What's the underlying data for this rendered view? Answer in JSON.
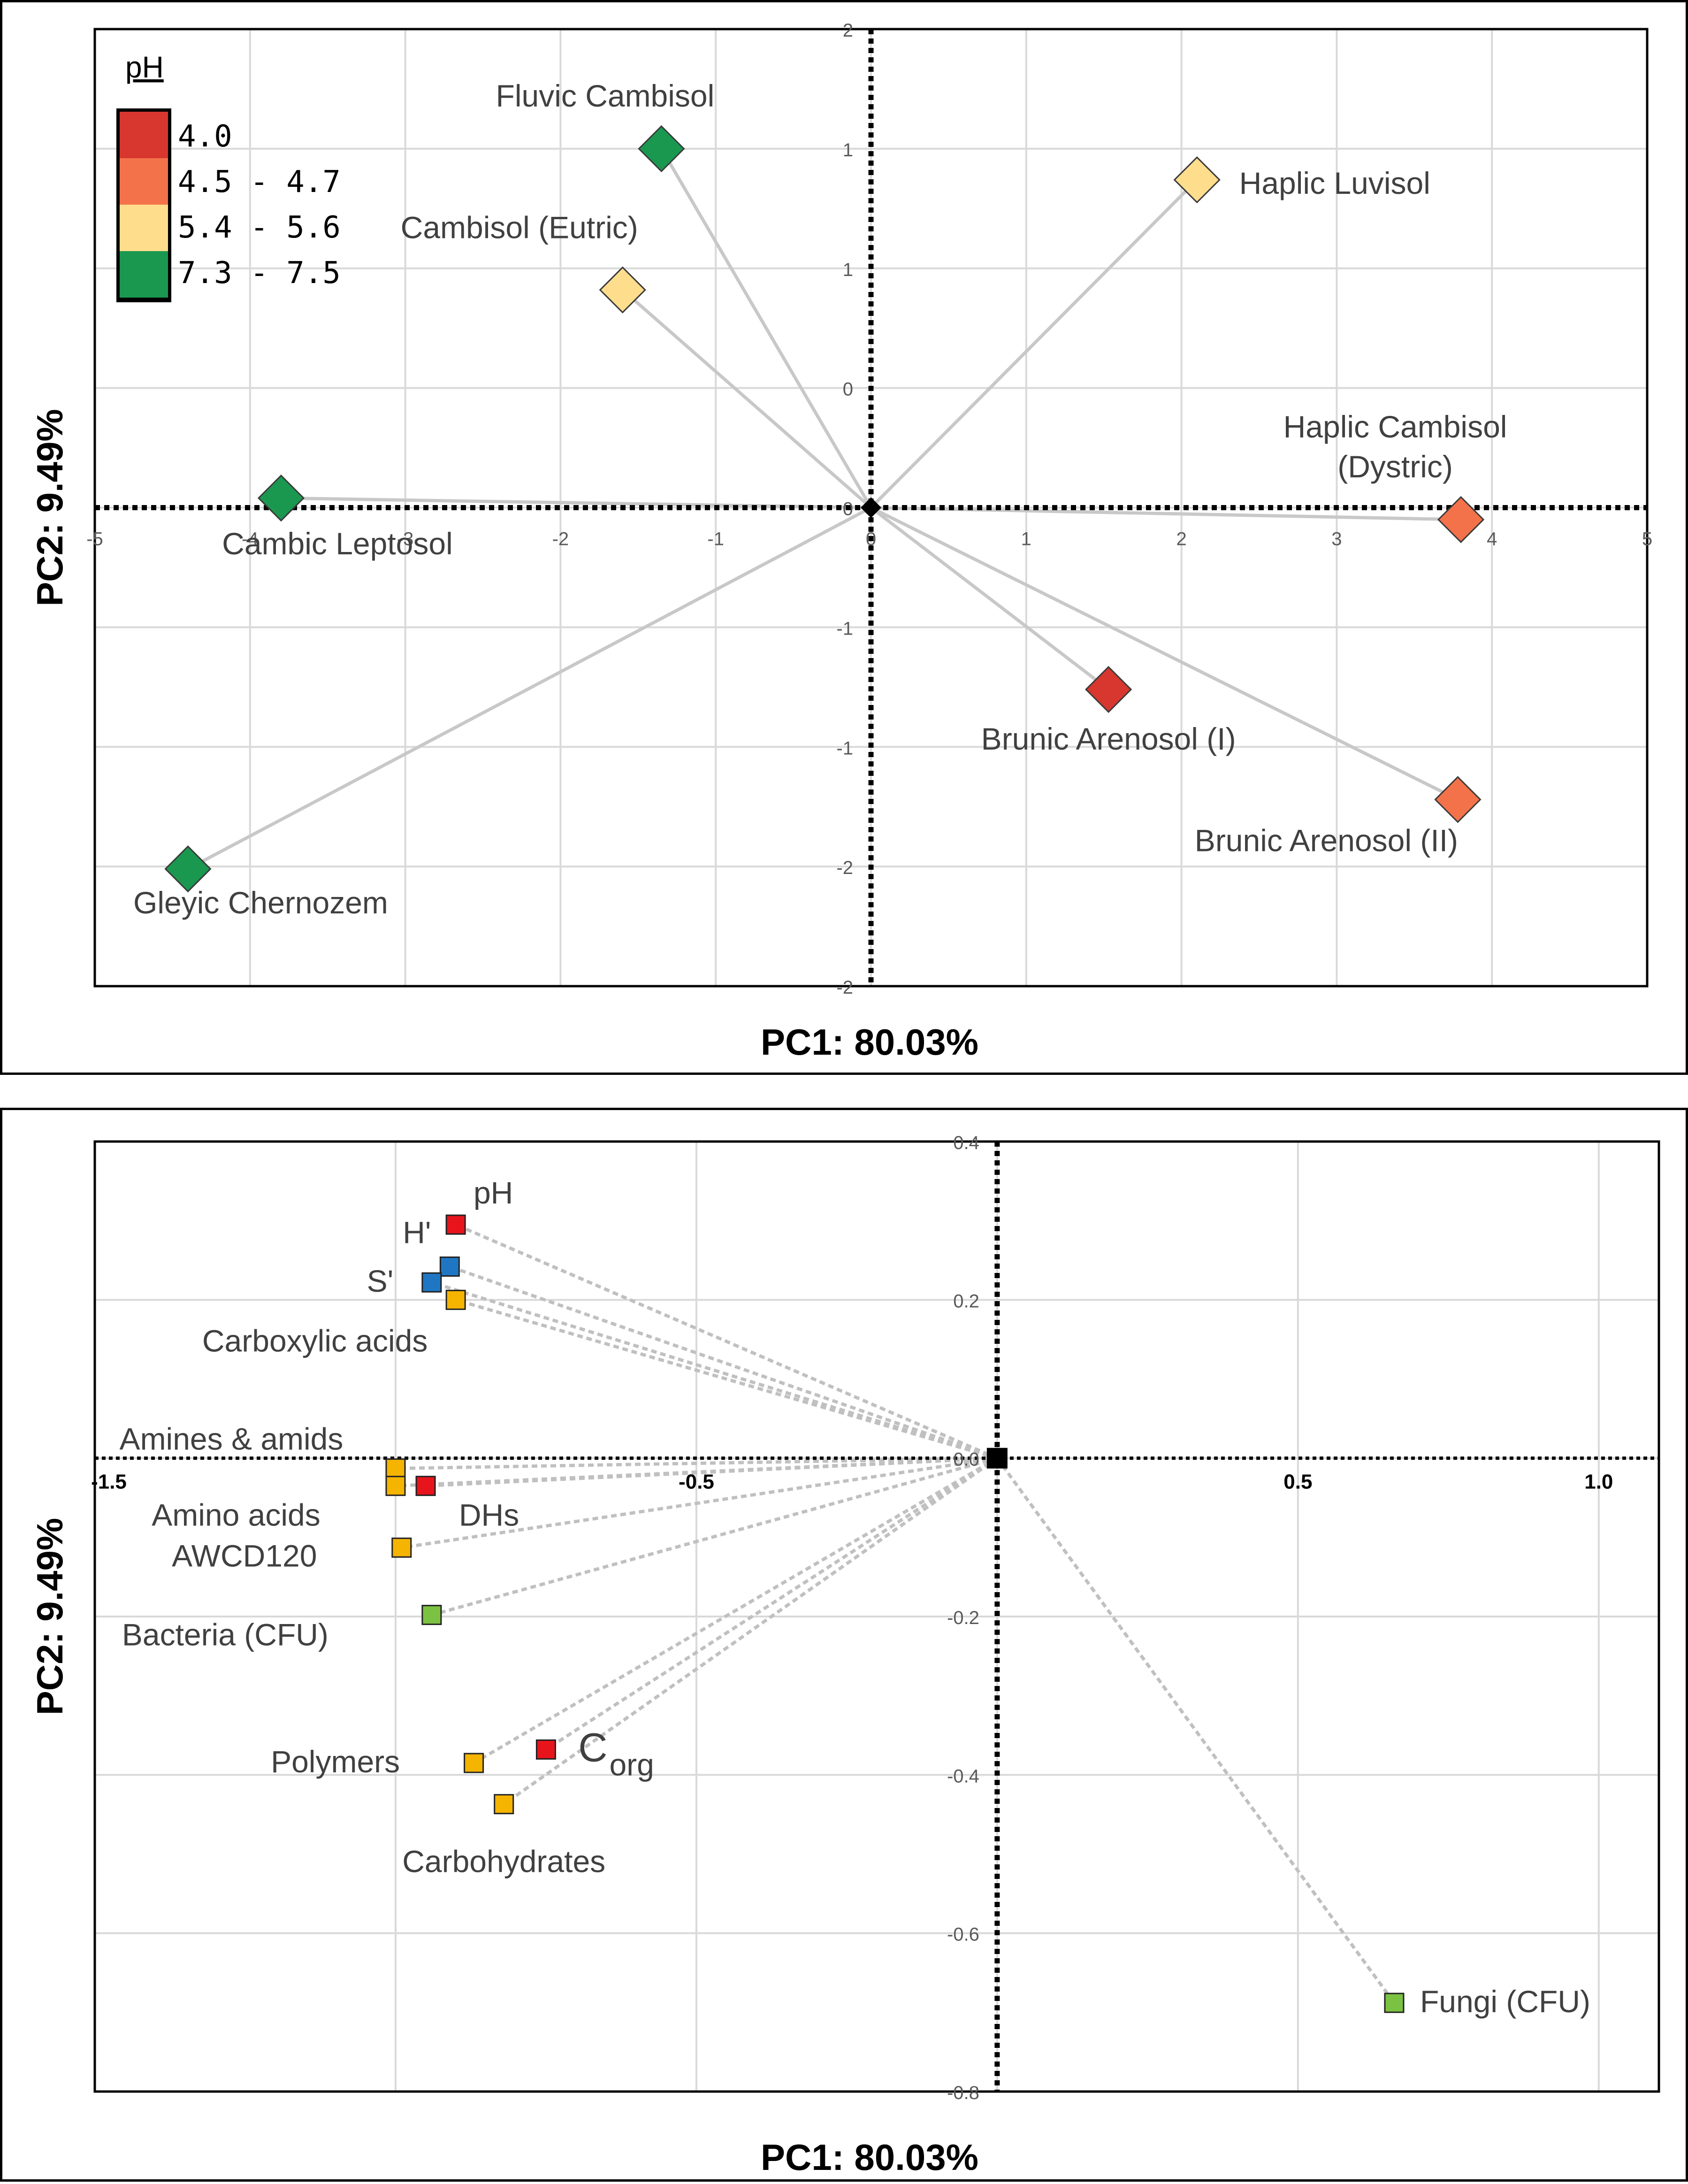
{
  "chart_data": [
    {
      "type": "scatter",
      "xlabel": "PC1: 80.03%",
      "ylabel": "PC2: 9.49%",
      "xlim": [
        -5,
        5
      ],
      "ylim": [
        -2,
        2
      ],
      "x_ticks": [
        "-5",
        "-4",
        "-3",
        "-2",
        "-1",
        "0",
        "1",
        "2",
        "3",
        "4",
        "5"
      ],
      "y_ticks": [
        "2",
        "1",
        "1",
        "0",
        "-1",
        "-1",
        "-2",
        "-2"
      ],
      "grid": true,
      "legend": {
        "title": "pH",
        "placement": "top-left",
        "entries": [
          {
            "label": "4.0",
            "color": "#d7372e"
          },
          {
            "label": "4.5 - 4.7",
            "color": "#f4724a"
          },
          {
            "label": "5.4 - 5.6",
            "color": "#fedd8d"
          },
          {
            "label": "7.3 - 7.5",
            "color": "#1a9850"
          }
        ]
      },
      "points": [
        {
          "label": "Fluvic Cambisol",
          "x": -1.35,
          "y": 1.5,
          "color": "#1a9850"
        },
        {
          "label": "Cambisol (Eutric)",
          "x": -1.6,
          "y": 0.91,
          "color": "#fedd8d"
        },
        {
          "label": "Haplic Luvisol",
          "x": 2.1,
          "y": 1.37,
          "color": "#fedd8d"
        },
        {
          "label": "Haplic Cambisol (Dystric)",
          "x": 3.8,
          "y": -0.05,
          "color": "#f4724a"
        },
        {
          "label": "Cambic Leptosol",
          "x": -3.8,
          "y": 0.04,
          "color": "#1a9850"
        },
        {
          "label": "Brunic Arenosol (I)",
          "x": 1.53,
          "y": -0.76,
          "color": "#d7372e"
        },
        {
          "label": "Brunic Arenosol (II)",
          "x": 3.78,
          "y": -1.22,
          "color": "#f4724a"
        },
        {
          "label": "Gleyic Chernozem",
          "x": -4.4,
          "y": -1.51,
          "color": "#1a9850"
        }
      ]
    },
    {
      "type": "scatter",
      "xlabel": "PC1: 80.03%",
      "ylabel": "PC2: 9.49%",
      "xlim": [
        -1.5,
        1.1
      ],
      "ylim": [
        -0.8,
        0.4
      ],
      "x_ticks": [
        "-1.5",
        "-0.5",
        "0.5",
        "1.0"
      ],
      "y_ticks": [
        "0.4",
        "0.2",
        "0.0",
        "-0.2",
        "-0.4",
        "-0.6",
        "-0.8"
      ],
      "grid": true,
      "points": [
        {
          "label": "pH",
          "x": -0.9,
          "y": 0.295,
          "color": "#e8141c"
        },
        {
          "label": "H'",
          "x": -0.91,
          "y": 0.242,
          "color": "#1f77c4"
        },
        {
          "label": "S'",
          "x": -0.94,
          "y": 0.222,
          "color": "#1f77c4"
        },
        {
          "label": "Carboxylic acids",
          "x": -0.9,
          "y": 0.2,
          "color": "#f5b400"
        },
        {
          "label": "Amines & amids",
          "x": -1.0,
          "y": -0.013,
          "color": "#f5b400"
        },
        {
          "label": "Amino acids",
          "x": -1.0,
          "y": -0.035,
          "color": "#f5b400"
        },
        {
          "label": "DHs",
          "x": -0.95,
          "y": -0.035,
          "color": "#e8141c"
        },
        {
          "label": "AWCD120",
          "x": -0.99,
          "y": -0.113,
          "color": "#f5b400"
        },
        {
          "label": "Bacteria (CFU)",
          "x": -0.94,
          "y": -0.198,
          "color": "#7cc242"
        },
        {
          "label": "Polymers",
          "x": -0.87,
          "y": -0.385,
          "color": "#f5b400"
        },
        {
          "label": "C_org",
          "x": -0.75,
          "y": -0.368,
          "color": "#e8141c"
        },
        {
          "label": "Carbohydrates",
          "x": -0.82,
          "y": -0.437,
          "color": "#f5b400"
        },
        {
          "label": "Fungi (CFU)",
          "x": 0.66,
          "y": -0.688,
          "color": "#7cc242"
        }
      ],
      "corg_text": {
        "main": "C",
        "sub": "org"
      }
    }
  ]
}
